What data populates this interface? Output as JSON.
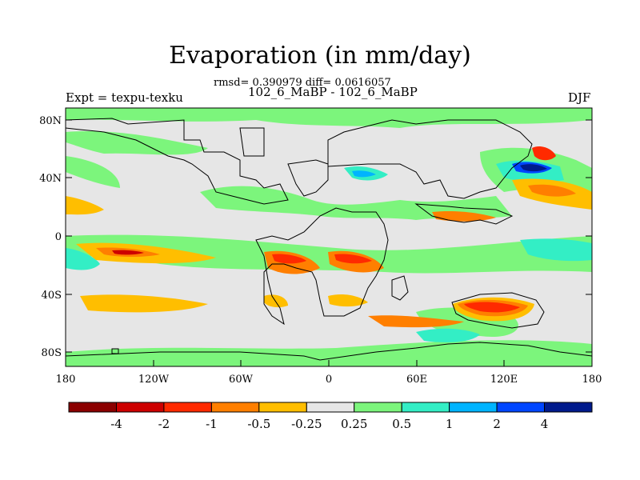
{
  "title": "Evaporation (in mm/day)",
  "stats_line": "rmsd= 0.390979 diff= 0.0616057",
  "subtitle": "102_6_MaBP - 102_6_MaBP",
  "left_label": "Expt = texpu-texku",
  "right_label": "DJF",
  "chart_data": {
    "type": "heatmap",
    "title": "Evaporation (in mm/day)",
    "x_ticks": [
      "180",
      "120W",
      "60W",
      "0",
      "60E",
      "120E",
      "180"
    ],
    "y_ticks": [
      "80N",
      "40N",
      "0",
      "40S",
      "80S"
    ],
    "xlim": [
      -180,
      180
    ],
    "ylim": [
      -90,
      90
    ],
    "colorbar": {
      "labels": [
        "-4",
        "-2",
        "-1",
        "-0.5",
        "-0.25",
        "0.25",
        "0.5",
        "1",
        "2",
        "4"
      ],
      "colors": [
        "#8b0000",
        "#cd0000",
        "#ff2a00",
        "#ff7f00",
        "#ffbe00",
        "#e6e6e6",
        "#7cf57c",
        "#33eec5",
        "#00b4ff",
        "#0046ff",
        "#001a8c"
      ]
    },
    "features": [
      {
        "desc": "strong negative",
        "lon": 112,
        "lat": -48,
        "value": -1.5
      },
      {
        "desc": "strong positive",
        "lon": 145,
        "lat": 38,
        "value": 3
      },
      {
        "desc": "negative",
        "lon": 148,
        "lat": 50,
        "value": -1
      }
    ]
  }
}
